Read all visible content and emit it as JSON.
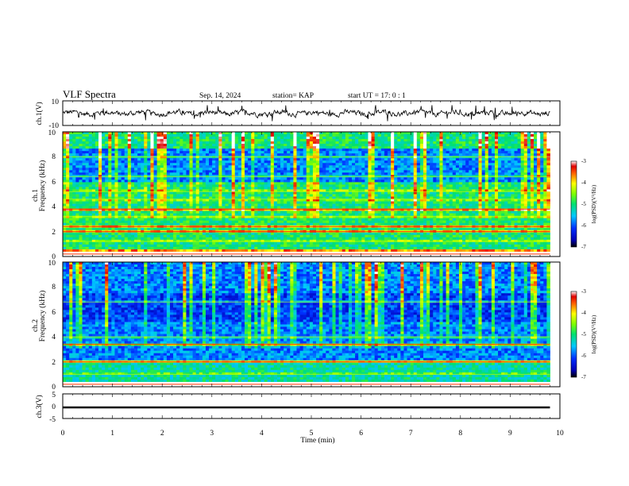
{
  "header": {
    "title": "VLF Spectra",
    "date": "Sep. 14, 2024",
    "station": "station= KAP",
    "start": "start  UT =  17: 0  : 1"
  },
  "chart_data": [
    {
      "type": "line",
      "panel": "ch1-waveform",
      "ylabel": "ch.1(V)",
      "ylim": [
        -10,
        10
      ],
      "ytick_labels": [
        "10",
        "-10"
      ],
      "x_range_min": [
        0,
        9.8
      ],
      "color": "#000000",
      "note_values": "noisy waveform fluctuating between about -5 and 5 V"
    },
    {
      "type": "heatmap",
      "panel": "ch1-spectrogram",
      "ylabel_lines": [
        "ch.1",
        "Frequency (kHz)"
      ],
      "ylim": [
        0,
        10
      ],
      "ytick_labels": [
        "0",
        "2",
        "4",
        "6",
        "8",
        "10"
      ],
      "x_range_min": [
        0,
        9.8
      ],
      "colorbar": {
        "label": "log(PSD)(V²/Hz)",
        "range": [
          -7,
          -3
        ],
        "tick_labels": [
          "-3",
          "-4",
          "-5",
          "-6",
          "-7"
        ]
      },
      "strong_bands_khz": [
        0.2,
        2.0,
        2.4,
        3.8
      ],
      "weak_bands_khz": [
        1.2,
        3.2,
        4.6,
        5.2,
        6.4,
        8.0
      ]
    },
    {
      "type": "heatmap",
      "panel": "ch2-spectrogram",
      "ylabel_lines": [
        "ch.2",
        "Frequency (kHz)"
      ],
      "ylim": [
        0,
        10
      ],
      "ytick_labels": [
        "0",
        "2",
        "4",
        "6",
        "8",
        "10"
      ],
      "x_range_min": [
        0,
        9.8
      ],
      "colorbar": {
        "label": "log(PSD)(V²/Hz)",
        "range": [
          -7,
          -3
        ],
        "tick_labels": [
          "-3",
          "-4",
          "-5",
          "-6",
          "-7"
        ]
      },
      "strong_bands_khz": [
        0.2,
        2.0,
        3.4
      ],
      "weak_bands_khz": [
        1.0,
        4.0,
        6.8
      ]
    },
    {
      "type": "line",
      "panel": "ch3-waveform",
      "ylabel": "ch.3(V)",
      "ylim": [
        -5,
        5
      ],
      "ytick_labels": [
        "5",
        "0",
        "-5"
      ],
      "x_range_min": [
        0,
        9.8
      ],
      "color": "#000000",
      "note_values": "flat trace at about -0.5 V"
    }
  ],
  "xaxis": {
    "label": "Time (min)",
    "xlim": [
      0,
      10
    ],
    "tick_labels": [
      "0",
      "1",
      "2",
      "3",
      "4",
      "5",
      "6",
      "7",
      "8",
      "9",
      "10"
    ]
  }
}
